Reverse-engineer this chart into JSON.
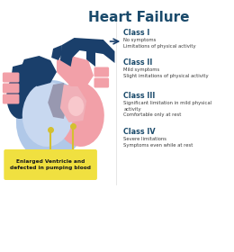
{
  "title": "Heart Failure",
  "title_color": "#1a4a6b",
  "title_fontsize": 11,
  "bg_color": "#ffffff",
  "classes": [
    {
      "name": "Class I",
      "desc": "No symptoms\nLimitations of physical activity"
    },
    {
      "name": "Class II",
      "desc": "Mild symptoms\nSlight imitations of physical activity"
    },
    {
      "name": "Class III",
      "desc": "Significant limitation in mild physical\nactivity\nComfortable only at rest"
    },
    {
      "name": "Class IV",
      "desc": "Severe limitations\nSymptoms even while at rest"
    }
  ],
  "class_name_color": "#1a4a6b",
  "class_desc_color": "#3a3a3a",
  "label_text": "Enlarged Ventricle and\ndefected in pumping blood",
  "label_bg": "#f0e040",
  "label_text_color": "#1a1a1a",
  "heart_dark_blue": "#1a3f6b",
  "heart_pink": "#f2a0a8",
  "heart_light_blue": "#b0c8e8",
  "heart_light_blue2": "#c8d8f0",
  "heart_gray": "#9898b0",
  "heart_pink_light": "#f8c8cc",
  "heart_pink_inner": "#f0b0b8"
}
